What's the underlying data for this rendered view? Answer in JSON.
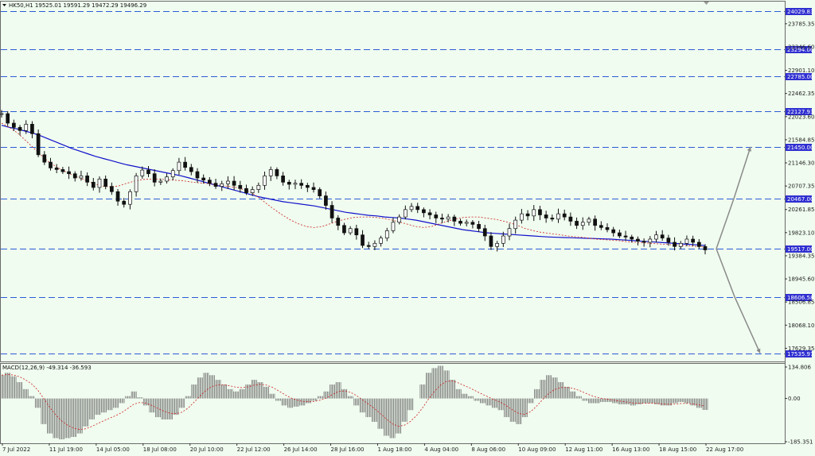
{
  "header": {
    "symbol_line": "HK50,H1  19525.01 19591.29 19472.29 19496.29"
  },
  "macd_header": "MACD(12,26,9) -49.314 -36.593",
  "colors": {
    "background": "#f0fcef",
    "grid_dash": "#2b5cd6",
    "level_box": "#2f2fd1",
    "ma_slow": "#1111cc",
    "ma_fast": "#cc2222",
    "candle": "#111111",
    "arrow": "#8a8a8a",
    "macd_hist": "#777777",
    "macd_signal": "#cc2222"
  },
  "chart_data": [
    {
      "type": "candlestick",
      "title": "HK50,H1",
      "ohlc_last": {
        "open": 19525.01,
        "high": 19591.29,
        "low": 19472.29,
        "close": 19496.29
      },
      "x_tick_labels": [
        "7 Jul 2022",
        "11 Jul 19:00",
        "14 Jul 05:00",
        "18 Jul 08:00",
        "20 Jul 10:00",
        "22 Jul 12:00",
        "26 Jul 14:00",
        "28 Jul 16:00",
        "1 Aug 18:00",
        "4 Aug 04:00",
        "8 Aug 06:00",
        "10 Aug 09:00",
        "12 Aug 11:00",
        "16 Aug 13:00",
        "18 Aug 15:00",
        "22 Aug 17:00"
      ],
      "y_tick_labels": [
        "23785.35",
        "23346.60",
        "22901.10",
        "22462.35",
        "22023.60",
        "21584.85",
        "21146.30",
        "20707.35",
        "20261.85",
        "19823.10",
        "19384.35",
        "18945.60",
        "18506.85",
        "18068.10",
        "17629.35"
      ],
      "ylim": [
        17500,
        24070
      ],
      "levels": [
        24029.83,
        23294.0,
        22785.0,
        22127.93,
        21450.0,
        20467.0,
        19517.0,
        18606.58,
        17535.97
      ],
      "price_path": [
        22080,
        21900,
        21820,
        21760,
        21880,
        21700,
        21300,
        21160,
        21050,
        21020,
        20980,
        20940,
        20860,
        20900,
        20780,
        20680,
        20840,
        20700,
        20600,
        20420,
        20360,
        20600,
        20900,
        21010,
        20940,
        20780,
        20800,
        20880,
        21000,
        21160,
        21060,
        20980,
        20860,
        20820,
        20760,
        20700,
        20750,
        20800,
        20720,
        20660,
        20580,
        20640,
        20720,
        20900,
        21020,
        20900,
        20780,
        20740,
        20760,
        20720,
        20680,
        20640,
        20520,
        20340,
        20100,
        19960,
        19820,
        19900,
        19780,
        19580,
        19560,
        19620,
        19720,
        19860,
        20020,
        20120,
        20260,
        20320,
        20260,
        20200,
        20160,
        20100,
        20080,
        20120,
        20040,
        20000,
        20020,
        19980,
        19900,
        19760,
        19560,
        19620,
        19760,
        19900,
        20060,
        20180,
        20140,
        20260,
        20160,
        20100,
        20080,
        20180,
        20120,
        20040,
        19960,
        20020,
        20080,
        19960,
        19920,
        19880,
        19820,
        19760,
        19740,
        19700,
        19660,
        19640,
        19700,
        19780,
        19720,
        19640,
        19560,
        19620,
        19700,
        19640,
        19560,
        19496
      ],
      "series": [
        {
          "name": "MA slow",
          "values": [
            21860,
            21820,
            21790,
            21750,
            21710,
            21660,
            21600,
            21540,
            21480,
            21420,
            21370,
            21320,
            21270,
            21230,
            21190,
            21150,
            21110,
            21080,
            21050,
            21020,
            20990,
            20960,
            20930,
            20900,
            20860,
            20820,
            20780,
            20740,
            20700,
            20660,
            20620,
            20580,
            20540,
            20500,
            20470,
            20440,
            20410,
            20390,
            20370,
            20350,
            20330,
            20300,
            20270,
            20240,
            20210,
            20190,
            20170,
            20150,
            20140,
            20120,
            20110,
            20100,
            20080,
            20060,
            20030,
            20000,
            19970,
            19940,
            19910,
            19880,
            19860,
            19840,
            19820,
            19810,
            19800,
            19790,
            19780,
            19770,
            19760,
            19750,
            19740,
            19735,
            19730,
            19725,
            19720,
            19715,
            19710,
            19705,
            19700,
            19690,
            19680,
            19670,
            19660,
            19650,
            19640,
            19630,
            19620,
            19610,
            19600,
            19590,
            19580
          ]
        },
        {
          "name": "MA fast",
          "values": [
            21900,
            21820,
            21720,
            21580,
            21440,
            21300,
            21170,
            21070,
            20990,
            20920,
            20860,
            20800,
            20740,
            20700,
            20690,
            20710,
            20760,
            20800,
            20830,
            20840,
            20840,
            20830,
            20820,
            20810,
            20790,
            20770,
            20760,
            20740,
            20720,
            20700,
            20680,
            20640,
            20580,
            20480,
            20360,
            20250,
            20150,
            20060,
            19990,
            19940,
            19920,
            19940,
            19990,
            20040,
            20080,
            20110,
            20120,
            20120,
            20110,
            20090,
            20060,
            20020,
            19980,
            19940,
            19920,
            19940,
            19990,
            20040,
            20080,
            20110,
            20120,
            20120,
            20100,
            20080,
            20050,
            20010,
            19960,
            19900,
            19860,
            19830,
            19810,
            19790,
            19770,
            19750,
            19740,
            19720,
            19700,
            19690,
            19680,
            19670,
            19650,
            19640,
            19630,
            19620,
            19610,
            19600,
            19590,
            19580,
            19570,
            19560,
            19550
          ]
        }
      ],
      "projection_targets": [
        21450.0,
        17535.97
      ]
    },
    {
      "type": "bar",
      "title": "MACD(12,26,9)",
      "y_tick_labels": [
        "134.806",
        "0.00",
        "-185.351"
      ],
      "ylim": [
        -185.351,
        134.806
      ],
      "values": [
        100,
        110,
        95,
        70,
        40,
        10,
        -40,
        -110,
        -150,
        -170,
        -175,
        -170,
        -165,
        -150,
        -120,
        -90,
        -70,
        -60,
        -50,
        -40,
        -20,
        10,
        30,
        5,
        -30,
        -60,
        -80,
        -90,
        -90,
        -70,
        -40,
        10,
        60,
        90,
        110,
        100,
        80,
        60,
        40,
        30,
        40,
        60,
        80,
        70,
        50,
        20,
        -10,
        -30,
        -40,
        -35,
        -30,
        -20,
        -10,
        10,
        30,
        60,
        70,
        40,
        10,
        -30,
        -60,
        -80,
        -100,
        -130,
        -160,
        -170,
        -150,
        -100,
        -50,
        0,
        60,
        110,
        130,
        140,
        120,
        80,
        40,
        20,
        10,
        -10,
        -20,
        -30,
        -40,
        -50,
        -80,
        -100,
        -110,
        -80,
        -20,
        40,
        80,
        100,
        90,
        70,
        50,
        30,
        10,
        -10,
        -20,
        -20,
        -15,
        -15,
        -20,
        -25,
        -25,
        -30,
        -25,
        -20,
        -20,
        -25,
        -30,
        -30,
        -20,
        -15,
        -20,
        -30,
        -40,
        -49.314
      ],
      "signal_line": [
        -36.593
      ]
    }
  ]
}
